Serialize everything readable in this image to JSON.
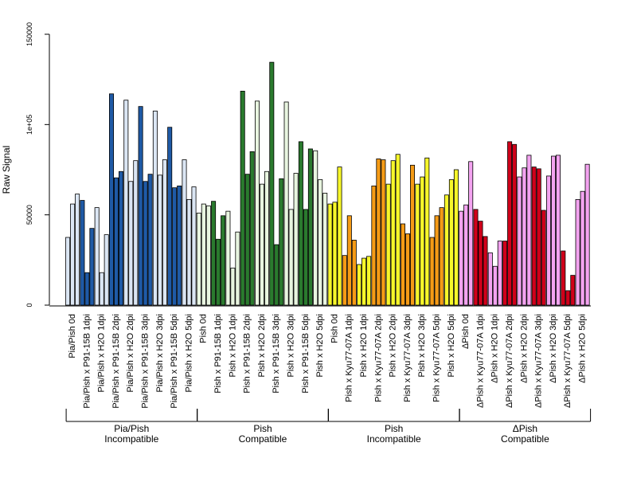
{
  "chart_data": {
    "type": "bar",
    "ylabel": "Raw Signal",
    "ylim": [
      0,
      150000
    ],
    "y_ticks": [
      0,
      50000,
      100000,
      150000
    ],
    "y_tick_labels": [
      "0",
      "50000",
      "1e+05",
      "150000"
    ],
    "grid": false,
    "legend": "none",
    "colors": {
      "light_blue": "#dbe6f4",
      "dark_blue": "#1f5aa6",
      "light_green": "#e8f5e0",
      "dark_green": "#2a7a2e",
      "yellow": "#f7f72a",
      "orange": "#f59b16",
      "pink": "#f3a3f0",
      "red": "#d0001a",
      "outline": "#000000"
    },
    "categories": [
      {
        "label": "Pia/Pish 0d",
        "values": [
          37500,
          56000,
          61500
        ],
        "colors": [
          "light_blue",
          "light_blue",
          "light_blue"
        ]
      },
      {
        "label": "Pia/Pish x P91-15B 1dpi",
        "values": [
          58000,
          18000,
          42500
        ],
        "colors": [
          "dark_blue",
          "dark_blue",
          "dark_blue"
        ]
      },
      {
        "label": "Pia/Pish x H2O 1dpi",
        "values": [
          54000,
          18000,
          39000
        ],
        "colors": [
          "light_blue",
          "light_blue",
          "light_blue"
        ]
      },
      {
        "label": "Pia/Pish x P91-15B 2dpi",
        "values": [
          117000,
          70500,
          74000
        ],
        "colors": [
          "dark_blue",
          "dark_blue",
          "dark_blue"
        ]
      },
      {
        "label": "Pia/Pish x H2O 2dpi",
        "values": [
          113500,
          68500,
          80000
        ],
        "colors": [
          "light_blue",
          "light_blue",
          "light_blue"
        ]
      },
      {
        "label": "Pia/Pish x P91-15B 3dpi",
        "values": [
          110000,
          68500,
          72500
        ],
        "colors": [
          "dark_blue",
          "dark_blue",
          "dark_blue"
        ]
      },
      {
        "label": "Pia/Pish x H2O 3dpi",
        "values": [
          107500,
          72000,
          80500
        ],
        "colors": [
          "light_blue",
          "light_blue",
          "light_blue"
        ]
      },
      {
        "label": "Pia/Pish x P91-15B 5dpi",
        "values": [
          98500,
          65000,
          66000
        ],
        "colors": [
          "dark_blue",
          "dark_blue",
          "dark_blue"
        ]
      },
      {
        "label": "Pia/Pish x H2O 5dpi",
        "values": [
          80500,
          58500,
          65500
        ],
        "colors": [
          "light_blue",
          "light_blue",
          "light_blue"
        ]
      },
      {
        "label": "Pish 0d",
        "values": [
          51000,
          56000,
          55000
        ],
        "colors": [
          "light_green",
          "light_green",
          "light_green"
        ]
      },
      {
        "label": "Pish x P91-15B 1dpi",
        "values": [
          57500,
          36500,
          49500
        ],
        "colors": [
          "dark_green",
          "dark_green",
          "dark_green"
        ]
      },
      {
        "label": "Pish x H2O 1dpi",
        "values": [
          52000,
          20500,
          40500
        ],
        "colors": [
          "light_green",
          "light_green",
          "light_green"
        ]
      },
      {
        "label": "Pish x P91-15B 2dpi",
        "values": [
          118500,
          72500,
          85000
        ],
        "colors": [
          "dark_green",
          "dark_green",
          "dark_green"
        ]
      },
      {
        "label": "Pish x H2O 2dpi",
        "values": [
          113000,
          67000,
          74000
        ],
        "colors": [
          "light_green",
          "light_green",
          "light_green"
        ]
      },
      {
        "label": "Pish x P91-15B 3dpi",
        "values": [
          134500,
          33500,
          70000
        ],
        "colors": [
          "dark_green",
          "dark_green",
          "dark_green"
        ]
      },
      {
        "label": "Pish x H2O 3dpi",
        "values": [
          112500,
          53000,
          73000
        ],
        "colors": [
          "light_green",
          "light_green",
          "light_green"
        ]
      },
      {
        "label": "Pish x P91-15B 5dpi",
        "values": [
          90500,
          53000,
          86500
        ],
        "colors": [
          "dark_green",
          "dark_green",
          "dark_green"
        ]
      },
      {
        "label": "Pish x H2O 5dpi",
        "values": [
          85500,
          69500,
          62000
        ],
        "colors": [
          "light_green",
          "light_green",
          "light_green"
        ]
      },
      {
        "label": "Pish 0d",
        "values": [
          56000,
          57000,
          76500
        ],
        "colors": [
          "yellow",
          "yellow",
          "yellow"
        ]
      },
      {
        "label": "Pish x Kyu77-07A 1dpi",
        "values": [
          27500,
          49500,
          36000
        ],
        "colors": [
          "orange",
          "orange",
          "orange"
        ]
      },
      {
        "label": "Pish x H2O 1dpi",
        "values": [
          22500,
          26000,
          27000
        ],
        "colors": [
          "yellow",
          "yellow",
          "yellow"
        ]
      },
      {
        "label": "Pish x Kyu77-07A 2dpi",
        "values": [
          66000,
          81000,
          80500
        ],
        "colors": [
          "orange",
          "orange",
          "orange"
        ]
      },
      {
        "label": "Pish x H2O 2dpi",
        "values": [
          67000,
          80000,
          83500
        ],
        "colors": [
          "yellow",
          "yellow",
          "yellow"
        ]
      },
      {
        "label": "Pish x Kyu77-07A 3dpi",
        "values": [
          45000,
          39500,
          77500
        ],
        "colors": [
          "orange",
          "orange",
          "orange"
        ]
      },
      {
        "label": "Pish x H2O 3dpi",
        "values": [
          67000,
          71000,
          81500
        ],
        "colors": [
          "yellow",
          "yellow",
          "yellow"
        ]
      },
      {
        "label": "Pish x Kyu77-07A 5dpi",
        "values": [
          37500,
          49500,
          54000
        ],
        "colors": [
          "orange",
          "orange",
          "orange"
        ]
      },
      {
        "label": "Pish x H2O 5dpi",
        "values": [
          61000,
          69500,
          75000
        ],
        "colors": [
          "yellow",
          "yellow",
          "yellow"
        ]
      },
      {
        "label": "ΔPish 0d",
        "values": [
          52000,
          55500,
          79500
        ],
        "colors": [
          "pink",
          "pink",
          "pink"
        ]
      },
      {
        "label": "ΔPish x Kyu77-07A 1dpi",
        "values": [
          53000,
          46500,
          38000
        ],
        "colors": [
          "red",
          "red",
          "red"
        ]
      },
      {
        "label": "ΔPish x H2O 1dpi",
        "values": [
          29000,
          21500,
          35500
        ],
        "colors": [
          "pink",
          "pink",
          "pink"
        ]
      },
      {
        "label": "ΔPish x Kyu77-07A 2dpi",
        "values": [
          35500,
          90500,
          89000
        ],
        "colors": [
          "red",
          "red",
          "red"
        ]
      },
      {
        "label": "ΔPish x H2O 2dpi",
        "values": [
          71000,
          76000,
          83000
        ],
        "colors": [
          "pink",
          "pink",
          "pink"
        ]
      },
      {
        "label": "ΔPish x Kyu77-07A 3dpi",
        "values": [
          76500,
          75500,
          52500
        ],
        "colors": [
          "red",
          "red",
          "red"
        ]
      },
      {
        "label": "ΔPish x H2O 3dpi",
        "values": [
          71500,
          82500,
          83000
        ],
        "colors": [
          "pink",
          "pink",
          "pink"
        ]
      },
      {
        "label": "ΔPish x Kyu77-07A 5dpi",
        "values": [
          30000,
          8000,
          16500
        ],
        "colors": [
          "red",
          "red",
          "red"
        ]
      },
      {
        "label": "ΔPish x H2O 5dpi",
        "values": [
          58500,
          63000,
          78000
        ],
        "colors": [
          "pink",
          "pink",
          "pink"
        ]
      }
    ],
    "groups": [
      {
        "line1": "Pia/Pish",
        "line2": "Incompatible",
        "first": 0,
        "last": 8
      },
      {
        "line1": "Pish",
        "line2": "Compatible",
        "first": 9,
        "last": 17
      },
      {
        "line1": "Pish",
        "line2": "Incompatible",
        "first": 18,
        "last": 26
      },
      {
        "line1": "ΔPish",
        "line2": "Compatible",
        "first": 27,
        "last": 35
      }
    ]
  }
}
